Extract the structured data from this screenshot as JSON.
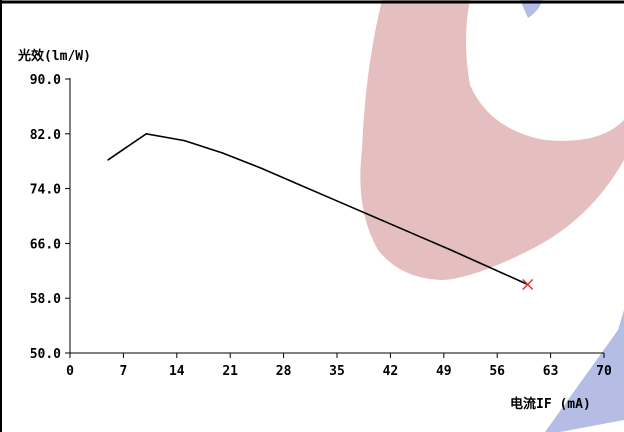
{
  "chart_data": {
    "type": "line",
    "ylabel": "光效(lm/W)",
    "xlabel": "电流IF (mA)",
    "xlim": [
      0,
      70
    ],
    "ylim": [
      50,
      90
    ],
    "x_ticks": [
      "0",
      "7",
      "14",
      "21",
      "28",
      "35",
      "42",
      "49",
      "56",
      "63",
      "70"
    ],
    "y_ticks": [
      "90.0",
      "82.0",
      "74.0",
      "66.0",
      "58.0",
      "50.0"
    ],
    "series": [
      {
        "x": [
          5,
          10,
          15,
          20,
          25,
          30,
          35,
          40,
          45,
          50,
          55,
          60
        ],
        "values": [
          78.2,
          82.0,
          81.0,
          79.2,
          77.0,
          74.6,
          72.2,
          69.8,
          67.4,
          65.0,
          62.5,
          60.0
        ],
        "color": "#000000"
      }
    ],
    "end_marker": {
      "symbol": "x",
      "color": "#e53030"
    },
    "grid": false
  },
  "colors": {
    "watermark_red": "#dca9a9",
    "watermark_blue": "#9ca7dc"
  }
}
